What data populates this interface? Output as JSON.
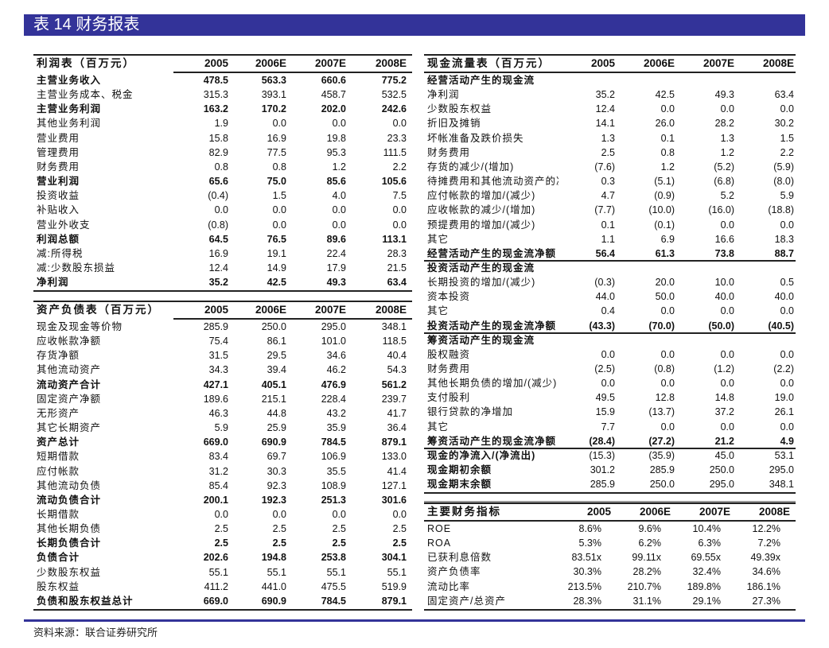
{
  "header": {
    "title": "表 14  财务报表"
  },
  "source": "资料来源：联合证券研究所",
  "colors": {
    "title_bar": "#333399",
    "rule": "#222222"
  },
  "tables": {
    "income": {
      "title": "利润表（百万元）",
      "years": [
        "2005",
        "2006E",
        "2007E",
        "2008E"
      ],
      "rows": [
        {
          "label": "主营业务收入",
          "values": [
            "478.5",
            "563.3",
            "660.6",
            "775.2"
          ],
          "bold": true
        },
        {
          "label": "主营业务成本、税金",
          "values": [
            "315.3",
            "393.1",
            "458.7",
            "532.5"
          ]
        },
        {
          "label": "主营业务利润",
          "values": [
            "163.2",
            "170.2",
            "202.0",
            "242.6"
          ],
          "bold": true
        },
        {
          "label": "其他业务利润",
          "values": [
            "1.9",
            "0.0",
            "0.0",
            "0.0"
          ]
        },
        {
          "label": "营业费用",
          "values": [
            "15.8",
            "16.9",
            "19.8",
            "23.3"
          ]
        },
        {
          "label": "管理费用",
          "values": [
            "82.9",
            "77.5",
            "95.3",
            "111.5"
          ]
        },
        {
          "label": "财务费用",
          "values": [
            "0.8",
            "0.8",
            "1.2",
            "2.2"
          ]
        },
        {
          "label": "营业利润",
          "values": [
            "65.6",
            "75.0",
            "85.6",
            "105.6"
          ],
          "bold": true
        },
        {
          "label": "投资收益",
          "values": [
            "(0.4)",
            "1.5",
            "4.0",
            "7.5"
          ]
        },
        {
          "label": "补贴收入",
          "values": [
            "0.0",
            "0.0",
            "0.0",
            "0.0"
          ]
        },
        {
          "label": "营业外收支",
          "values": [
            "(0.8)",
            "0.0",
            "0.0",
            "0.0"
          ]
        },
        {
          "label": "利润总额",
          "values": [
            "64.5",
            "76.5",
            "89.6",
            "113.1"
          ],
          "bold": true
        },
        {
          "label": "减:所得税",
          "values": [
            "16.9",
            "19.1",
            "22.4",
            "28.3"
          ]
        },
        {
          "label": "减:少数股东损益",
          "values": [
            "12.4",
            "14.9",
            "17.9",
            "21.5"
          ]
        },
        {
          "label": "净利润",
          "values": [
            "35.2",
            "42.5",
            "49.3",
            "63.4"
          ],
          "bold": true
        }
      ]
    },
    "balance": {
      "title": "资产负债表（百万元）",
      "years": [
        "2005",
        "2006E",
        "2007E",
        "2008E"
      ],
      "rows": [
        {
          "label": "现金及现金等价物",
          "values": [
            "285.9",
            "250.0",
            "295.0",
            "348.1"
          ]
        },
        {
          "label": "应收帐款净额",
          "values": [
            "75.4",
            "86.1",
            "101.0",
            "118.5"
          ]
        },
        {
          "label": "存货净额",
          "values": [
            "31.5",
            "29.5",
            "34.6",
            "40.4"
          ]
        },
        {
          "label": "其他流动资产",
          "values": [
            "34.3",
            "39.4",
            "46.2",
            "54.3"
          ]
        },
        {
          "label": "流动资产合计",
          "values": [
            "427.1",
            "405.1",
            "476.9",
            "561.2"
          ],
          "bold": true
        },
        {
          "label": "固定资产净额",
          "values": [
            "189.6",
            "215.1",
            "228.4",
            "239.7"
          ]
        },
        {
          "label": "无形资产",
          "values": [
            "46.3",
            "44.8",
            "43.2",
            "41.7"
          ]
        },
        {
          "label": "其它长期资产",
          "values": [
            "5.9",
            "25.9",
            "35.9",
            "36.4"
          ]
        },
        {
          "label": "资产总计",
          "values": [
            "669.0",
            "690.9",
            "784.5",
            "879.1"
          ],
          "bold": true
        },
        {
          "label": "短期借款",
          "values": [
            "83.4",
            "69.7",
            "106.9",
            "133.0"
          ]
        },
        {
          "label": "应付帐款",
          "values": [
            "31.2",
            "30.3",
            "35.5",
            "41.4"
          ]
        },
        {
          "label": "其他流动负债",
          "values": [
            "85.4",
            "92.3",
            "108.9",
            "127.1"
          ]
        },
        {
          "label": "流动负债合计",
          "values": [
            "200.1",
            "192.3",
            "251.3",
            "301.6"
          ],
          "bold": true
        },
        {
          "label": "长期借款",
          "values": [
            "0.0",
            "0.0",
            "0.0",
            "0.0"
          ]
        },
        {
          "label": "其他长期负债",
          "values": [
            "2.5",
            "2.5",
            "2.5",
            "2.5"
          ]
        },
        {
          "label": "长期负债合计",
          "values": [
            "2.5",
            "2.5",
            "2.5",
            "2.5"
          ],
          "bold": true
        },
        {
          "label": "负债合计",
          "values": [
            "202.6",
            "194.8",
            "253.8",
            "304.1"
          ],
          "bold": true
        },
        {
          "label": "少数股东权益",
          "values": [
            "55.1",
            "55.1",
            "55.1",
            "55.1"
          ]
        },
        {
          "label": "股东权益",
          "values": [
            "411.2",
            "441.0",
            "475.5",
            "519.9"
          ]
        },
        {
          "label": "负债和股东权益总计",
          "values": [
            "669.0",
            "690.9",
            "784.5",
            "879.1"
          ],
          "bold": true
        }
      ]
    },
    "cashflow": {
      "title": "现金流量表（百万元）",
      "years": [
        "2005",
        "2006E",
        "2007E",
        "2008E"
      ],
      "rows": [
        {
          "label": "经营活动产生的现金流",
          "values": [
            "",
            "",
            "",
            ""
          ],
          "label_bold": true
        },
        {
          "label": "净利润",
          "values": [
            "35.2",
            "42.5",
            "49.3",
            "63.4"
          ]
        },
        {
          "label": "少数股东权益",
          "values": [
            "12.4",
            "0.0",
            "0.0",
            "0.0"
          ]
        },
        {
          "label": "折旧及摊销",
          "values": [
            "14.1",
            "26.0",
            "28.2",
            "30.2"
          ]
        },
        {
          "label": "坏帐准备及跌价损失",
          "values": [
            "1.3",
            "0.1",
            "1.3",
            "1.5"
          ]
        },
        {
          "label": "财务费用",
          "values": [
            "2.5",
            "0.8",
            "1.2",
            "2.2"
          ]
        },
        {
          "label": "存货的减少/(增加)",
          "values": [
            "(7.6)",
            "1.2",
            "(5.2)",
            "(5.9)"
          ]
        },
        {
          "label": "待摊费用和其他流动资产的减",
          "values": [
            "0.3",
            "(5.1)",
            "(6.8)",
            "(8.0)"
          ]
        },
        {
          "label": "应付帐款的增加/(减少)",
          "values": [
            "4.7",
            "(0.9)",
            "5.2",
            "5.9"
          ]
        },
        {
          "label": "应收帐款的减少/(增加)",
          "values": [
            "(7.7)",
            "(10.0)",
            "(16.0)",
            "(18.8)"
          ]
        },
        {
          "label": "预提费用的增加/(减少)",
          "values": [
            "0.1",
            "(0.1)",
            "0.0",
            "0.0"
          ]
        },
        {
          "label": "其它",
          "values": [
            "1.1",
            "6.9",
            "16.6",
            "18.3"
          ]
        },
        {
          "label": "经营活动产生的现金流净额",
          "values": [
            "56.4",
            "61.3",
            "73.8",
            "88.7"
          ],
          "bold": true
        },
        {
          "label": "投资活动产生的现金流",
          "values": [
            "",
            "",
            "",
            ""
          ],
          "label_bold": true
        },
        {
          "label": "长期投资的增加/(减少)",
          "values": [
            "(0.3)",
            "20.0",
            "10.0",
            "0.5"
          ]
        },
        {
          "label": "资本投资",
          "values": [
            "44.0",
            "50.0",
            "40.0",
            "40.0"
          ]
        },
        {
          "label": "其它",
          "values": [
            "0.4",
            "0.0",
            "0.0",
            "0.0"
          ]
        },
        {
          "label": "投资活动产生的现金流净额",
          "values": [
            "(43.3)",
            "(70.0)",
            "(50.0)",
            "(40.5)"
          ],
          "bold": true
        },
        {
          "label": "筹资活动产生的现金流",
          "values": [
            "",
            "",
            "",
            ""
          ],
          "label_bold": true
        },
        {
          "label": "股权融资",
          "values": [
            "0.0",
            "0.0",
            "0.0",
            "0.0"
          ]
        },
        {
          "label": "财务费用",
          "values": [
            "(2.5)",
            "(0.8)",
            "(1.2)",
            "(2.2)"
          ]
        },
        {
          "label": "其他长期负债的增加/(减少)",
          "values": [
            "0.0",
            "0.0",
            "0.0",
            "0.0"
          ]
        },
        {
          "label": "支付股利",
          "values": [
            "49.5",
            "12.8",
            "14.8",
            "19.0"
          ]
        },
        {
          "label": "银行贷款的净增加",
          "values": [
            "15.9",
            "(13.7)",
            "37.2",
            "26.1"
          ]
        },
        {
          "label": "其它",
          "values": [
            "7.7",
            "0.0",
            "0.0",
            "0.0"
          ]
        },
        {
          "label": "筹资活动产生的现金流净额",
          "values": [
            "(28.4)",
            "(27.2)",
            "21.2",
            "4.9"
          ],
          "bold": true
        },
        {
          "label": "现金的净流入/(净流出)",
          "values": [
            "(15.3)",
            "(35.9)",
            "45.0",
            "53.1"
          ],
          "label_bold": true
        },
        {
          "label": "现金期初余额",
          "values": [
            "301.2",
            "285.9",
            "250.0",
            "295.0"
          ],
          "label_bold": true
        },
        {
          "label": "现金期末余额",
          "values": [
            "285.9",
            "250.0",
            "295.0",
            "348.1"
          ],
          "label_bold": true
        }
      ]
    },
    "indicators": {
      "title": "主要财务指标",
      "years": [
        "2005",
        "2006E",
        "2007E",
        "2008E"
      ],
      "rows": [
        {
          "label": "ROE",
          "values": [
            "8.6%",
            "9.6%",
            "10.4%",
            "12.2%"
          ]
        },
        {
          "label": "ROA",
          "values": [
            "5.3%",
            "6.2%",
            "6.3%",
            "7.2%"
          ]
        },
        {
          "label": "已获利息倍数",
          "values": [
            "83.51x",
            "99.11x",
            "69.55x",
            "49.39x"
          ]
        },
        {
          "label": "资产负债率",
          "values": [
            "30.3%",
            "28.2%",
            "32.4%",
            "34.6%"
          ]
        },
        {
          "label": "流动比率",
          "values": [
            "213.5%",
            "210.7%",
            "189.8%",
            "186.1%"
          ]
        },
        {
          "label": "固定资产/总资产",
          "values": [
            "28.3%",
            "31.1%",
            "29.1%",
            "27.3%"
          ]
        }
      ]
    }
  }
}
